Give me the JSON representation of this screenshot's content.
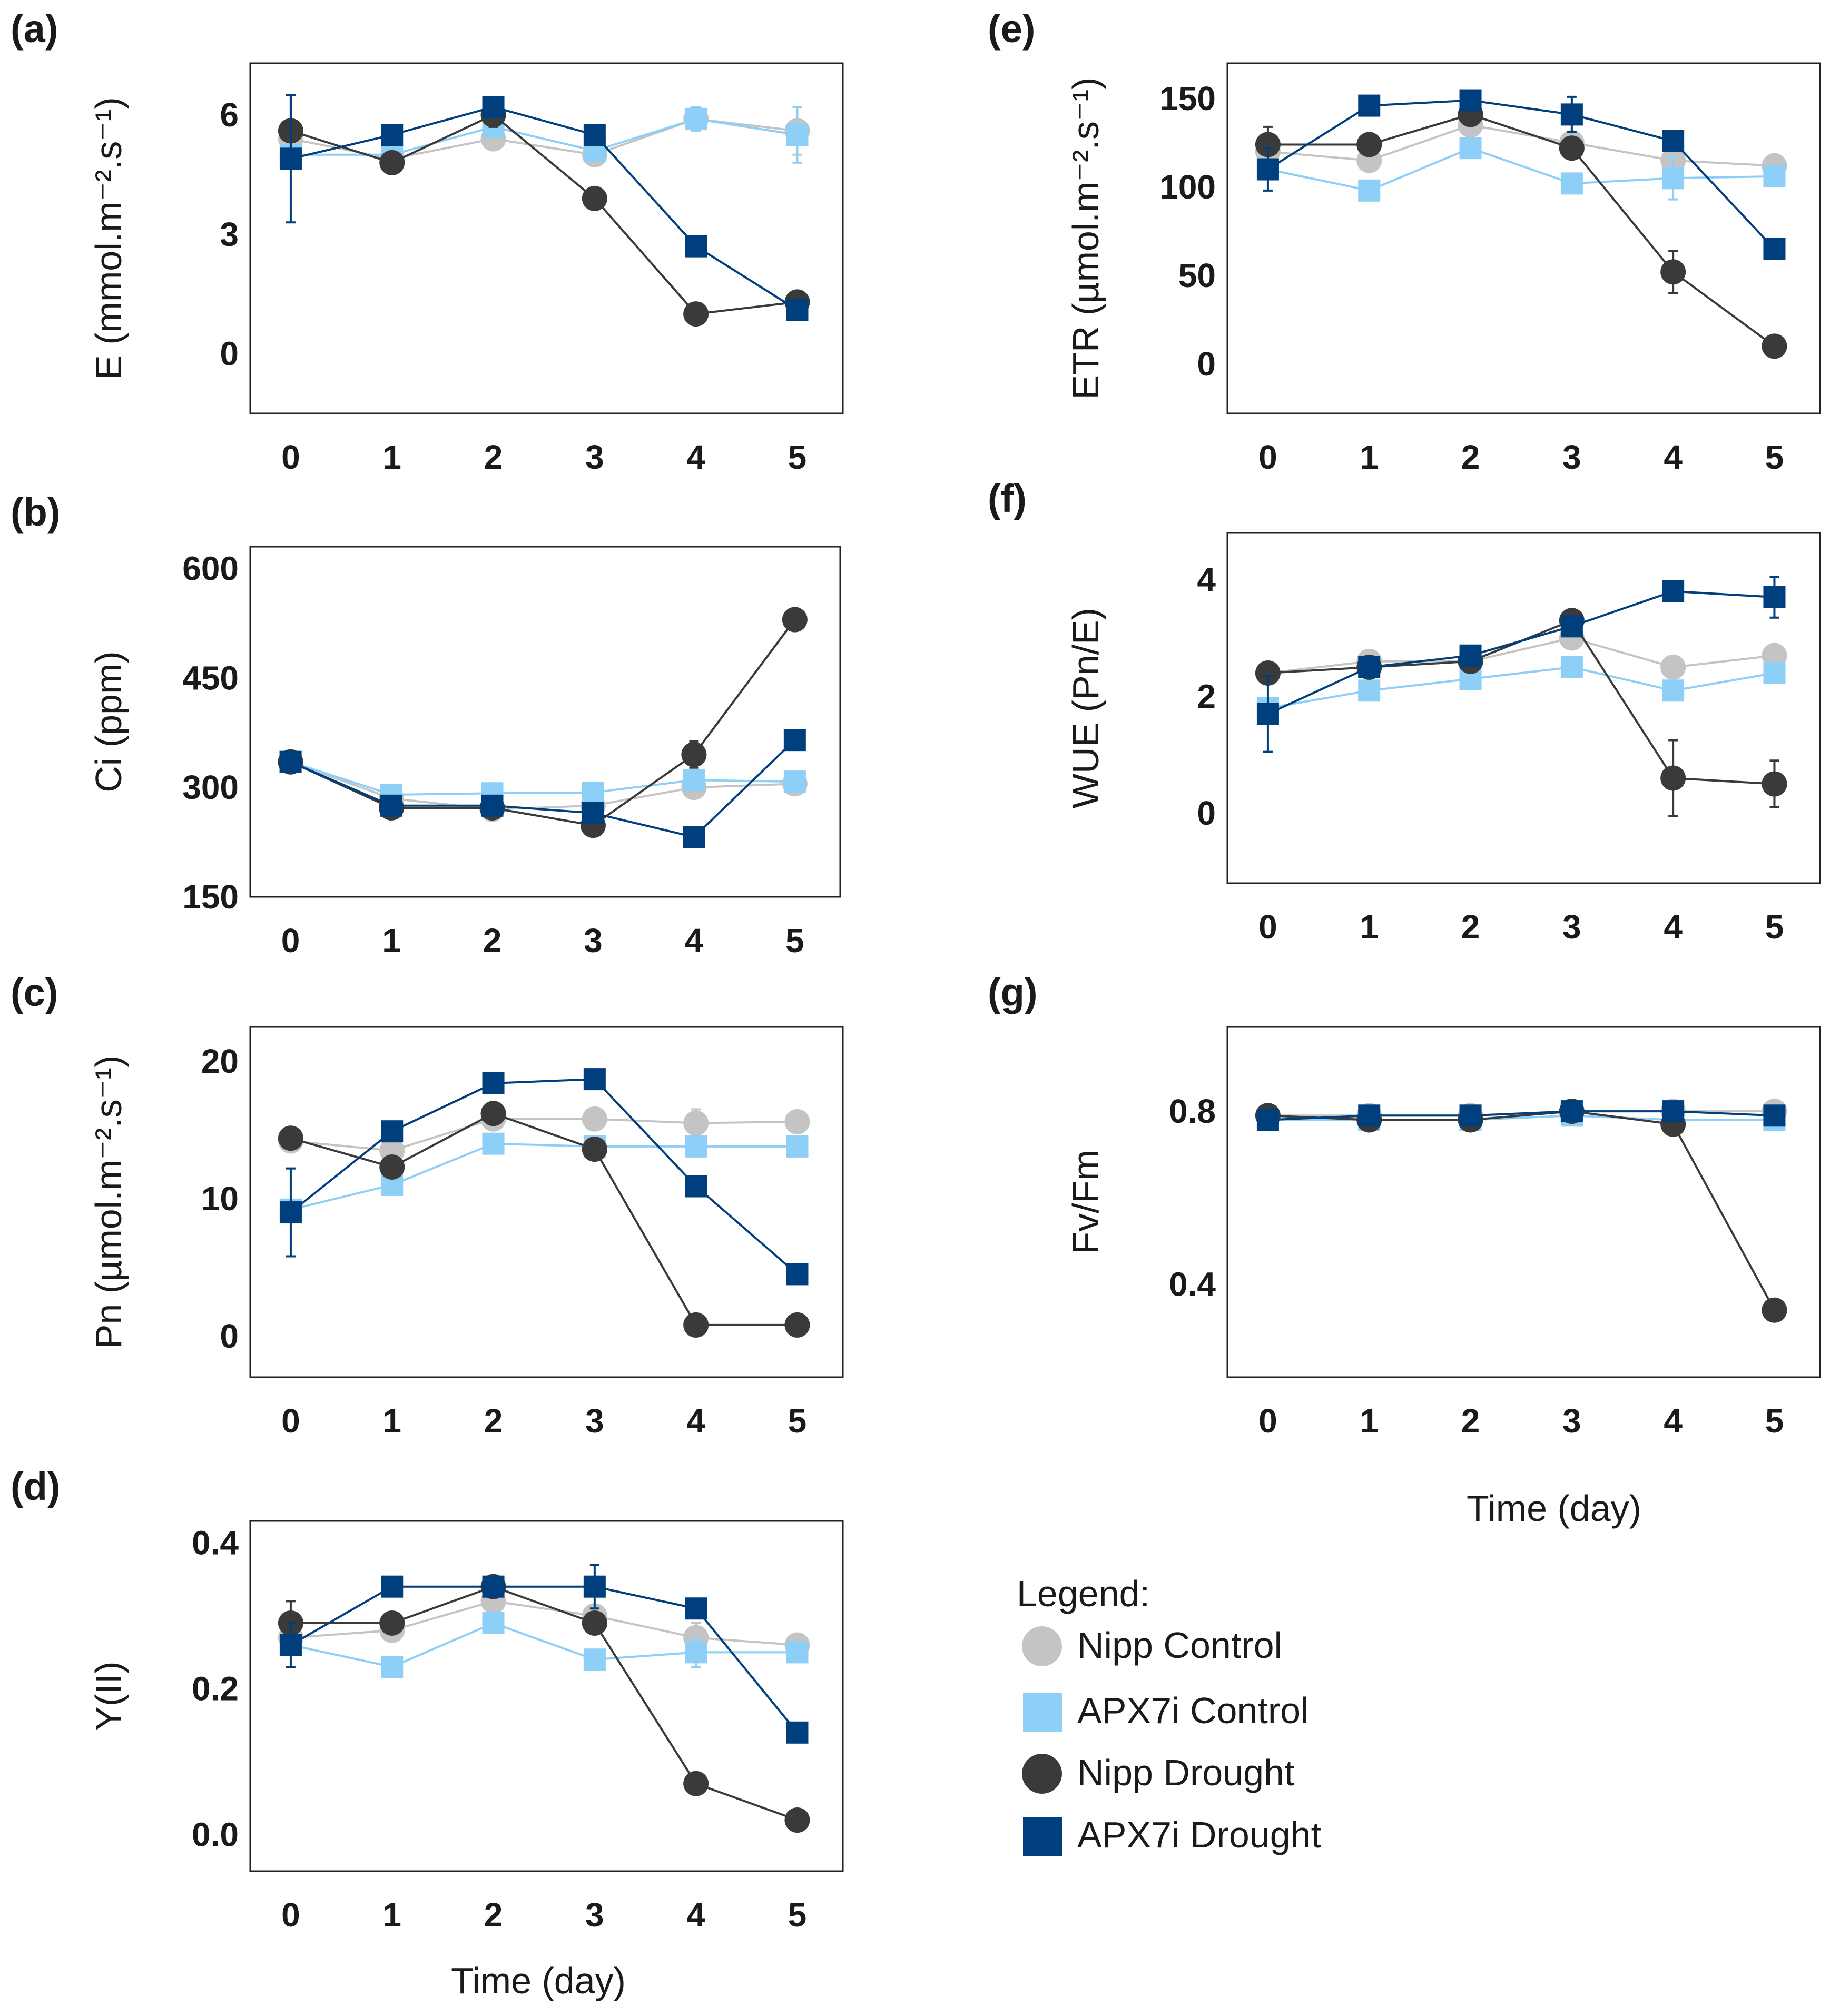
{
  "legend": {
    "title": "Legend:",
    "items": [
      {
        "key": "nipp_control",
        "label": "Nipp Control"
      },
      {
        "key": "apx7i_control",
        "label": "APX7i Control"
      },
      {
        "key": "nipp_drought",
        "label": "Nipp Drought"
      },
      {
        "key": "apx7i_drought",
        "label": "APX7i Drought"
      }
    ]
  },
  "series_styles": {
    "nipp_control": {
      "color": "#c4c4c4",
      "marker": "circle"
    },
    "apx7i_control": {
      "color": "#8ecff7",
      "marker": "square"
    },
    "nipp_drought": {
      "color": "#3a3a3a",
      "marker": "circle"
    },
    "apx7i_drought": {
      "color": "#003f7d",
      "marker": "square"
    }
  },
  "shared_xlabel": "Time (day)",
  "chart_data": [
    {
      "id": "a",
      "panel_label": "(a)",
      "type": "line",
      "ylabel": "E (mmol.m⁻².s⁻¹)",
      "x": [
        0,
        1,
        2,
        3,
        4,
        5
      ],
      "ylim": [
        -1.5,
        7.3
      ],
      "yticks": [
        0,
        3,
        6
      ],
      "series": [
        {
          "key": "nipp_control",
          "values": [
            5.4,
            4.9,
            5.4,
            5.0,
            5.9,
            5.6
          ],
          "err": [
            0.3,
            0.2,
            0.2,
            0.2,
            0.2,
            0.6
          ]
        },
        {
          "key": "apx7i_control",
          "values": [
            5.0,
            5.0,
            5.7,
            5.1,
            5.9,
            5.5
          ],
          "err": [
            0.2,
            0.2,
            0.2,
            0.2,
            0.3,
            0.7
          ]
        },
        {
          "key": "nipp_drought",
          "values": [
            5.6,
            4.8,
            6.0,
            3.9,
            1.0,
            1.3
          ],
          "err": [
            0.9,
            0.2,
            0.3,
            0.1,
            0.1,
            0.1
          ]
        },
        {
          "key": "apx7i_drought",
          "values": [
            4.9,
            5.5,
            6.2,
            5.5,
            2.7,
            1.1
          ],
          "err": [
            1.6,
            0.2,
            0.2,
            0.2,
            0.1,
            0.1
          ]
        }
      ]
    },
    {
      "id": "b",
      "panel_label": "(b)",
      "type": "line",
      "ylabel": "Ci (ppm)",
      "x": [
        0,
        1,
        2,
        3,
        4,
        5
      ],
      "ylim": [
        150,
        630
      ],
      "yticks": [
        150,
        300,
        450,
        600
      ],
      "series": [
        {
          "key": "nipp_control",
          "values": [
            335,
            285,
            270,
            275,
            300,
            305
          ],
          "err": [
            6,
            5,
            5,
            5,
            8,
            8
          ]
        },
        {
          "key": "apx7i_control",
          "values": [
            335,
            290,
            292,
            293,
            310,
            308
          ],
          "err": [
            6,
            5,
            5,
            5,
            8,
            8
          ]
        },
        {
          "key": "nipp_drought",
          "values": [
            335,
            272,
            272,
            248,
            345,
            530
          ],
          "err": [
            6,
            5,
            5,
            5,
            18,
            10
          ]
        },
        {
          "key": "apx7i_drought",
          "values": [
            335,
            275,
            275,
            265,
            232,
            365
          ],
          "err": [
            6,
            5,
            5,
            5,
            6,
            8
          ]
        }
      ]
    },
    {
      "id": "c",
      "panel_label": "(c)",
      "type": "line",
      "ylabel": "Pn (µmol.m⁻².s⁻¹)",
      "x": [
        0,
        1,
        2,
        3,
        4,
        5
      ],
      "ylim": [
        -3,
        22.5
      ],
      "yticks": [
        0,
        10,
        20
      ],
      "series": [
        {
          "key": "nipp_control",
          "values": [
            14.2,
            13.5,
            15.8,
            15.8,
            15.5,
            15.6
          ],
          "err": [
            0.3,
            0.5,
            0.5,
            0.3,
            1.0,
            0.5
          ]
        },
        {
          "key": "apx7i_control",
          "values": [
            9.2,
            11.0,
            14.0,
            13.8,
            13.8,
            13.8
          ],
          "err": [
            0.3,
            0.3,
            0.5,
            0.3,
            0.3,
            0.3
          ]
        },
        {
          "key": "nipp_drought",
          "values": [
            14.4,
            12.3,
            16.2,
            13.6,
            0.8,
            0.8
          ],
          "err": [
            0.3,
            0.5,
            0.5,
            0.3,
            0.2,
            0.2
          ]
        },
        {
          "key": "apx7i_drought",
          "values": [
            9.0,
            14.9,
            18.4,
            18.7,
            10.9,
            4.5
          ],
          "err": [
            3.2,
            0.5,
            0.5,
            0.3,
            0.3,
            0.3
          ]
        }
      ]
    },
    {
      "id": "d",
      "panel_label": "(d)",
      "type": "line",
      "ylabel": "Y(II)",
      "x": [
        0,
        1,
        2,
        3,
        4,
        5
      ],
      "ylim": [
        -0.05,
        0.43
      ],
      "yticks": [
        0.0,
        0.2,
        0.4
      ],
      "ytick_labels": [
        "0.0",
        "0.2",
        "0.4"
      ],
      "series": [
        {
          "key": "nipp_control",
          "values": [
            0.27,
            0.28,
            0.32,
            0.3,
            0.27,
            0.26
          ],
          "err": [
            0.01,
            0.01,
            0.01,
            0.01,
            0.02,
            0.01
          ]
        },
        {
          "key": "apx7i_control",
          "values": [
            0.26,
            0.23,
            0.29,
            0.24,
            0.25,
            0.25
          ],
          "err": [
            0.01,
            0.01,
            0.01,
            0.01,
            0.02,
            0.01
          ]
        },
        {
          "key": "nipp_drought",
          "values": [
            0.29,
            0.29,
            0.34,
            0.29,
            0.07,
            0.02
          ],
          "err": [
            0.03,
            0.01,
            0.01,
            0.01,
            0.01,
            0.01
          ]
        },
        {
          "key": "apx7i_drought",
          "values": [
            0.26,
            0.34,
            0.34,
            0.34,
            0.31,
            0.14
          ],
          "err": [
            0.03,
            0.01,
            0.01,
            0.03,
            0.01,
            0.01
          ]
        }
      ]
    },
    {
      "id": "e",
      "panel_label": "(e)",
      "type": "line",
      "ylabel": "ETR (µmol.m⁻².s⁻¹)",
      "x": [
        0,
        1,
        2,
        3,
        4,
        5
      ],
      "ylim": [
        -28,
        170
      ],
      "yticks": [
        0,
        50,
        100,
        150
      ],
      "series": [
        {
          "key": "nipp_control",
          "values": [
            120,
            115,
            135,
            125,
            115,
            112
          ],
          "err": [
            4,
            4,
            4,
            4,
            8,
            4
          ]
        },
        {
          "key": "apx7i_control",
          "values": [
            110,
            98,
            122,
            102,
            105,
            106
          ],
          "err": [
            4,
            4,
            4,
            4,
            12,
            4
          ]
        },
        {
          "key": "nipp_drought",
          "values": [
            124,
            124,
            141,
            122,
            52,
            10
          ],
          "err": [
            10,
            4,
            4,
            4,
            12,
            3
          ]
        },
        {
          "key": "apx7i_drought",
          "values": [
            110,
            146,
            149,
            141,
            126,
            65
          ],
          "err": [
            12,
            4,
            4,
            10,
            4,
            3
          ]
        }
      ]
    },
    {
      "id": "f",
      "panel_label": "(f)",
      "type": "line",
      "ylabel": "WUE (Pn/E)",
      "x": [
        0,
        1,
        2,
        3,
        4,
        5
      ],
      "ylim": [
        -1.2,
        4.8
      ],
      "yticks": [
        0,
        2,
        4
      ],
      "series": [
        {
          "key": "nipp_control",
          "values": [
            2.4,
            2.6,
            2.6,
            3.0,
            2.5,
            2.7
          ],
          "err": [
            0.08,
            0.08,
            0.08,
            0.08,
            0.08,
            0.08
          ]
        },
        {
          "key": "apx7i_control",
          "values": [
            1.8,
            2.1,
            2.3,
            2.5,
            2.1,
            2.4
          ],
          "err": [
            0.08,
            0.08,
            0.08,
            0.08,
            0.08,
            0.08
          ]
        },
        {
          "key": "nipp_drought",
          "values": [
            2.4,
            2.5,
            2.6,
            3.3,
            0.6,
            0.5
          ],
          "err": [
            0.08,
            0.08,
            0.08,
            0.08,
            0.65,
            0.4
          ]
        },
        {
          "key": "apx7i_drought",
          "values": [
            1.7,
            2.5,
            2.7,
            3.2,
            3.8,
            3.7
          ],
          "err": [
            0.65,
            0.08,
            0.08,
            0.08,
            0.08,
            0.35
          ]
        }
      ]
    },
    {
      "id": "g",
      "panel_label": "(g)",
      "type": "line",
      "ylabel": "Fv/Fm",
      "x": [
        0,
        1,
        2,
        3,
        4,
        5
      ],
      "ylim": [
        0.185,
        0.995
      ],
      "yticks": [
        0.4,
        0.8
      ],
      "ytick_labels": [
        "0.4",
        "0.8"
      ],
      "series": [
        {
          "key": "nipp_control",
          "values": [
            0.79,
            0.79,
            0.79,
            0.8,
            0.8,
            0.8
          ],
          "err": [
            0.005,
            0.005,
            0.005,
            0.005,
            0.005,
            0.005
          ]
        },
        {
          "key": "apx7i_control",
          "values": [
            0.78,
            0.78,
            0.78,
            0.79,
            0.78,
            0.78
          ],
          "err": [
            0.005,
            0.005,
            0.005,
            0.005,
            0.005,
            0.005
          ]
        },
        {
          "key": "nipp_drought",
          "values": [
            0.79,
            0.78,
            0.78,
            0.8,
            0.77,
            0.34
          ],
          "err": [
            0.005,
            0.005,
            0.005,
            0.005,
            0.005,
            0.01
          ]
        },
        {
          "key": "apx7i_drought",
          "values": [
            0.78,
            0.79,
            0.79,
            0.8,
            0.8,
            0.79
          ],
          "err": [
            0.005,
            0.005,
            0.005,
            0.005,
            0.005,
            0.005
          ]
        }
      ]
    }
  ]
}
